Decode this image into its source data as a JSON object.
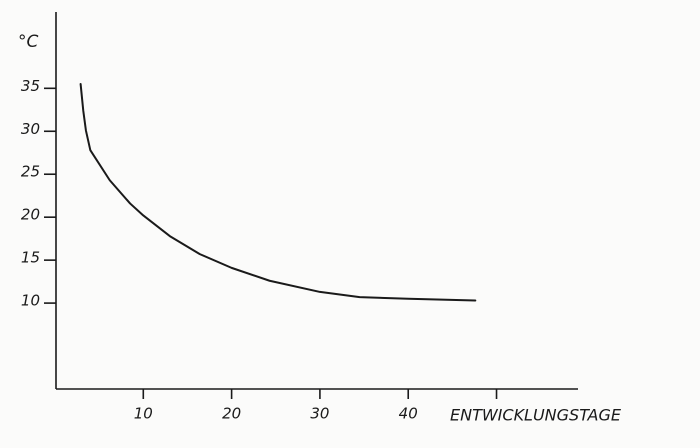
{
  "chart_data": {
    "type": "line",
    "y_label": "°C",
    "x_label": "ENTWICKLUNGSTAGE",
    "x": [
      2.9,
      3.2,
      3.5,
      4,
      6.2,
      8.5,
      10,
      13,
      16.4,
      20,
      24.3,
      30,
      34.5,
      40,
      47.6
    ],
    "series": [
      {
        "color": "#1a1a1a",
        "values": [
          35.5,
          32.4,
          30.1,
          27.8,
          24.3,
          21.6,
          20.2,
          17.8,
          15.7,
          14.1,
          12.6,
          11.3,
          10.7,
          10.5,
          10.3
        ]
      }
    ],
    "xlim": [
      0,
      59
    ],
    "ylim": [
      0,
      44
    ],
    "xticks": [
      10,
      20,
      30,
      40,
      {
        "value": 50,
        "label": null
      }
    ],
    "yticks": [
      10,
      15,
      20,
      25,
      30,
      35
    ],
    "grid": false
  }
}
